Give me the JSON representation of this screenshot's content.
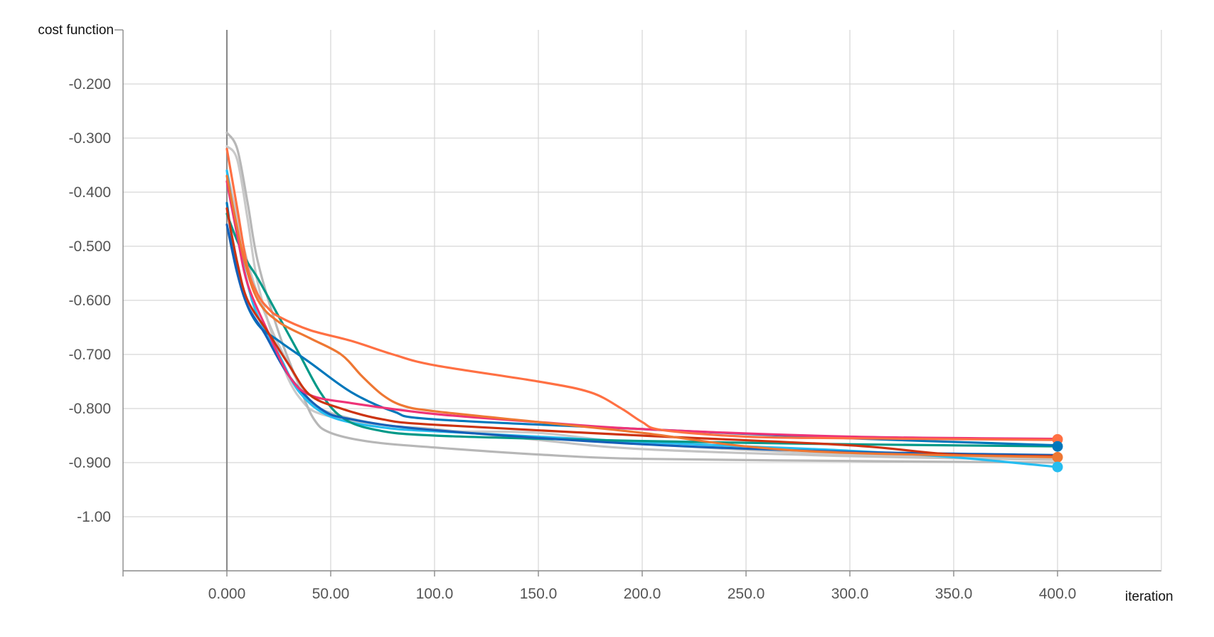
{
  "chart_data": {
    "type": "line",
    "xlabel": "iteration",
    "ylabel": "cost function",
    "xlim": [
      -50,
      450
    ],
    "ylim": [
      -1.1,
      -0.1
    ],
    "x_ticks": [
      0,
      50,
      100,
      150,
      200,
      250,
      300,
      350,
      400
    ],
    "x_tick_labels": [
      "0.000",
      "50.00",
      "100.0",
      "150.0",
      "200.0",
      "250.0",
      "300.0",
      "350.0",
      "400.0"
    ],
    "y_ticks": [
      -0.2,
      -0.3,
      -0.4,
      -0.5,
      -0.6,
      -0.7,
      -0.8,
      -0.9,
      -1.0
    ],
    "y_tick_labels": [
      "-0.200",
      "-0.300",
      "-0.400",
      "-0.500",
      "-0.600",
      "-0.700",
      "-0.800",
      "-0.900",
      "-1.00"
    ],
    "grid": true,
    "series": [
      {
        "color": "#c9c9c9",
        "points": [
          [
            0,
            -0.315
          ],
          [
            5,
            -0.34
          ],
          [
            10,
            -0.45
          ],
          [
            15,
            -0.57
          ],
          [
            25,
            -0.7
          ],
          [
            35,
            -0.78
          ],
          [
            50,
            -0.815
          ],
          [
            100,
            -0.84
          ],
          [
            150,
            -0.845
          ],
          [
            200,
            -0.865
          ],
          [
            300,
            -0.885
          ],
          [
            400,
            -0.893
          ]
        ]
      },
      {
        "color": "#b7b7b7",
        "points": [
          [
            0,
            -0.29
          ],
          [
            5,
            -0.32
          ],
          [
            10,
            -0.42
          ],
          [
            15,
            -0.53
          ],
          [
            25,
            -0.66
          ],
          [
            35,
            -0.76
          ],
          [
            42,
            -0.82
          ],
          [
            50,
            -0.845
          ],
          [
            70,
            -0.862
          ],
          [
            100,
            -0.872
          ],
          [
            150,
            -0.885
          ],
          [
            200,
            -0.893
          ],
          [
            300,
            -0.897
          ],
          [
            400,
            -0.9
          ]
        ]
      },
      {
        "color": "#c3c3c3",
        "points": [
          [
            0,
            -0.36
          ],
          [
            10,
            -0.53
          ],
          [
            20,
            -0.64
          ],
          [
            30,
            -0.72
          ],
          [
            40,
            -0.785
          ],
          [
            50,
            -0.808
          ],
          [
            75,
            -0.83
          ],
          [
            100,
            -0.838
          ],
          [
            150,
            -0.858
          ],
          [
            200,
            -0.875
          ],
          [
            300,
            -0.888
          ],
          [
            400,
            -0.895
          ]
        ]
      },
      {
        "color": "#26bdf0",
        "points": [
          [
            0,
            -0.36
          ],
          [
            5,
            -0.48
          ],
          [
            10,
            -0.57
          ],
          [
            15,
            -0.63
          ],
          [
            25,
            -0.7
          ],
          [
            35,
            -0.77
          ],
          [
            50,
            -0.815
          ],
          [
            75,
            -0.835
          ],
          [
            100,
            -0.842
          ],
          [
            150,
            -0.852
          ],
          [
            200,
            -0.862
          ],
          [
            250,
            -0.87
          ],
          [
            300,
            -0.878
          ],
          [
            350,
            -0.89
          ],
          [
            400,
            -0.908
          ]
        ]
      },
      {
        "color": "#009988",
        "points": [
          [
            0,
            -0.44
          ],
          [
            5,
            -0.49
          ],
          [
            10,
            -0.53
          ],
          [
            15,
            -0.56
          ],
          [
            25,
            -0.63
          ],
          [
            35,
            -0.7
          ],
          [
            45,
            -0.77
          ],
          [
            55,
            -0.815
          ],
          [
            70,
            -0.838
          ],
          [
            100,
            -0.85
          ],
          [
            200,
            -0.86
          ],
          [
            300,
            -0.866
          ],
          [
            400,
            -0.87
          ]
        ]
      },
      {
        "color": "#0077bb",
        "points": [
          [
            0,
            -0.42
          ],
          [
            3,
            -0.5
          ],
          [
            8,
            -0.59
          ],
          [
            15,
            -0.645
          ],
          [
            25,
            -0.675
          ],
          [
            40,
            -0.715
          ],
          [
            60,
            -0.77
          ],
          [
            80,
            -0.805
          ],
          [
            100,
            -0.82
          ],
          [
            200,
            -0.838
          ],
          [
            300,
            -0.855
          ],
          [
            400,
            -0.868
          ]
        ]
      },
      {
        "color": "#1560b8",
        "points": [
          [
            0,
            -0.46
          ],
          [
            5,
            -0.55
          ],
          [
            10,
            -0.61
          ],
          [
            18,
            -0.66
          ],
          [
            30,
            -0.74
          ],
          [
            45,
            -0.8
          ],
          [
            60,
            -0.82
          ],
          [
            100,
            -0.84
          ],
          [
            200,
            -0.866
          ],
          [
            300,
            -0.88
          ],
          [
            400,
            -0.886
          ]
        ]
      },
      {
        "color": "#ee3377",
        "points": [
          [
            0,
            -0.38
          ],
          [
            5,
            -0.48
          ],
          [
            10,
            -0.57
          ],
          [
            20,
            -0.66
          ],
          [
            30,
            -0.74
          ],
          [
            40,
            -0.775
          ],
          [
            60,
            -0.79
          ],
          [
            100,
            -0.81
          ],
          [
            150,
            -0.825
          ],
          [
            200,
            -0.838
          ],
          [
            300,
            -0.852
          ],
          [
            400,
            -0.856
          ]
        ]
      },
      {
        "color": "#cc3311",
        "points": [
          [
            0,
            -0.43
          ],
          [
            5,
            -0.53
          ],
          [
            10,
            -0.6
          ],
          [
            20,
            -0.66
          ],
          [
            30,
            -0.72
          ],
          [
            40,
            -0.775
          ],
          [
            55,
            -0.8
          ],
          [
            75,
            -0.82
          ],
          [
            100,
            -0.83
          ],
          [
            200,
            -0.85
          ],
          [
            300,
            -0.868
          ],
          [
            350,
            -0.885
          ],
          [
            400,
            -0.888
          ]
        ]
      },
      {
        "color": "#ff7043",
        "points": [
          [
            0,
            -0.32
          ],
          [
            5,
            -0.43
          ],
          [
            10,
            -0.54
          ],
          [
            15,
            -0.59
          ],
          [
            20,
            -0.615
          ],
          [
            25,
            -0.63
          ],
          [
            40,
            -0.655
          ],
          [
            60,
            -0.675
          ],
          [
            80,
            -0.7
          ],
          [
            100,
            -0.72
          ],
          [
            150,
            -0.75
          ],
          [
            175,
            -0.77
          ],
          [
            190,
            -0.8
          ],
          [
            200,
            -0.825
          ],
          [
            210,
            -0.84
          ],
          [
            250,
            -0.852
          ],
          [
            300,
            -0.855
          ],
          [
            400,
            -0.858
          ]
        ]
      },
      {
        "color": "#ee7733",
        "points": [
          [
            0,
            -0.37
          ],
          [
            8,
            -0.52
          ],
          [
            15,
            -0.6
          ],
          [
            25,
            -0.64
          ],
          [
            40,
            -0.67
          ],
          [
            55,
            -0.7
          ],
          [
            65,
            -0.74
          ],
          [
            75,
            -0.775
          ],
          [
            85,
            -0.795
          ],
          [
            100,
            -0.805
          ],
          [
            150,
            -0.825
          ],
          [
            200,
            -0.845
          ],
          [
            250,
            -0.87
          ],
          [
            300,
            -0.882
          ],
          [
            400,
            -0.89
          ]
        ]
      }
    ],
    "end_markers": [
      {
        "color": "#ff7043",
        "value": -0.857
      },
      {
        "color": "#0077bb",
        "value": -0.87
      },
      {
        "color": "#ee7733",
        "value": -0.89
      },
      {
        "color": "#26bdf0",
        "value": -0.908
      }
    ]
  }
}
